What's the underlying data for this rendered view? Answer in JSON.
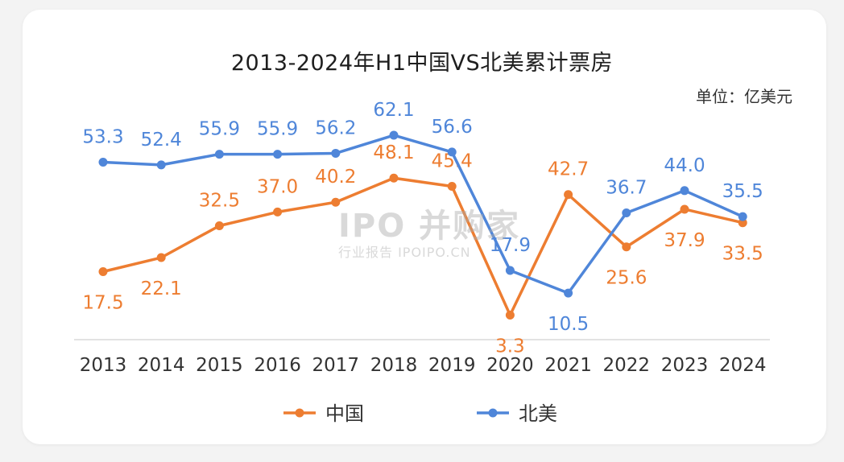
{
  "chart_data": {
    "type": "line",
    "title": "2013-2024年H1中国VS北美累计票房",
    "unit_label": "单位：亿美元",
    "categories": [
      "2013",
      "2014",
      "2015",
      "2016",
      "2017",
      "2018",
      "2019",
      "2020",
      "2021",
      "2022",
      "2023",
      "2024"
    ],
    "ylim": [
      0,
      70
    ],
    "grid": false,
    "legend_position": "bottom-center",
    "series": [
      {
        "name": "中国",
        "color": "#ED7D31",
        "values": [
          17.5,
          22.1,
          32.5,
          37.0,
          40.2,
          48.1,
          45.4,
          3.3,
          42.7,
          25.6,
          37.9,
          33.5
        ],
        "labels": [
          "17.5",
          "22.1",
          "32.5",
          "37.0",
          "40.2",
          "48.1",
          "45.4",
          "3.3",
          "42.7",
          "25.6",
          "37.9",
          "33.5"
        ]
      },
      {
        "name": "北美",
        "color": "#4F86D9",
        "values": [
          53.3,
          52.4,
          55.9,
          55.9,
          56.2,
          62.1,
          56.6,
          17.9,
          10.5,
          36.7,
          44.0,
          35.5
        ],
        "labels": [
          "53.3",
          "52.4",
          "55.9",
          "55.9",
          "56.2",
          "62.1",
          "56.6",
          "17.9",
          "10.5",
          "36.7",
          "44.0",
          "35.5"
        ]
      }
    ]
  },
  "watermark": {
    "main": "IPO 并购家",
    "sub": "行业报告 IPOIPO.CN"
  }
}
